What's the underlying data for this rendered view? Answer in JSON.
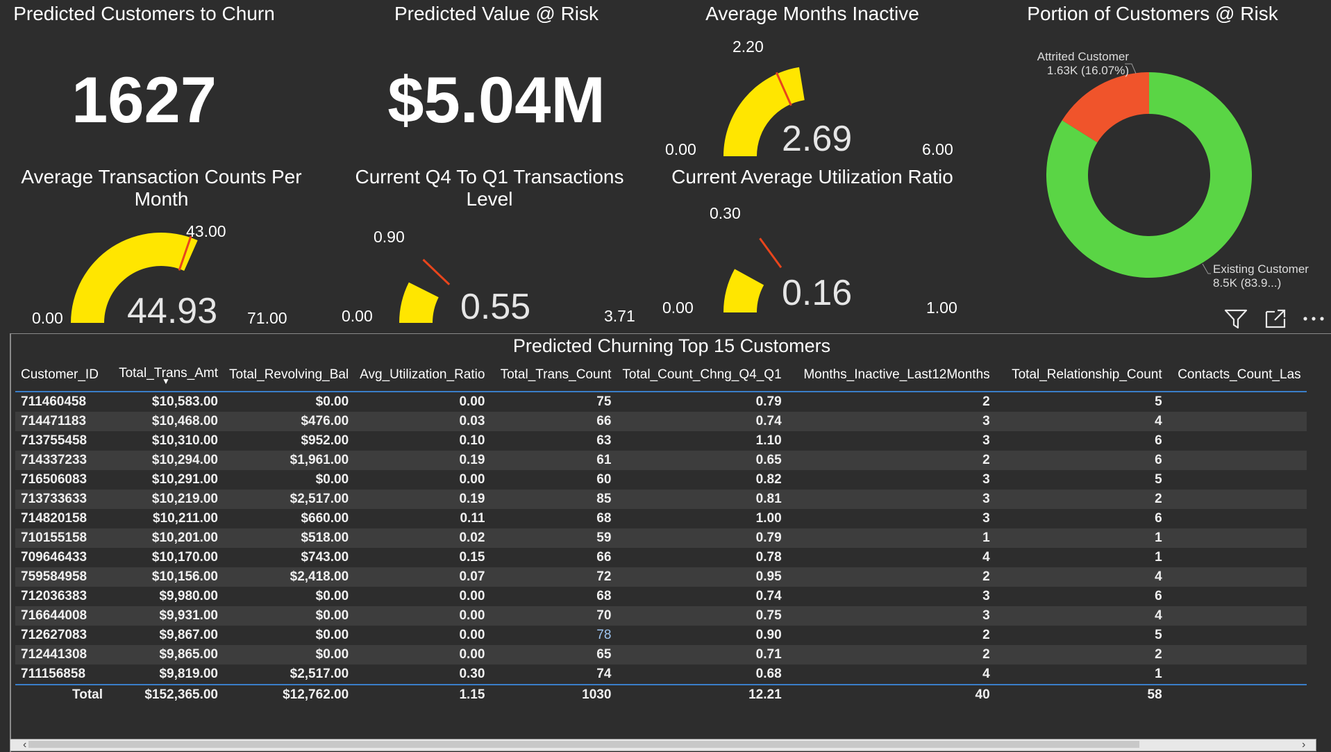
{
  "cards": {
    "churn_title": "Predicted Customers to Churn",
    "churn_value": "1627",
    "value_title": "Predicted Value @ Risk",
    "value_value": "$5.04M"
  },
  "gauges": {
    "months_inactive": {
      "title": "Average Months Inactive",
      "min": "0.00",
      "max": "6.00",
      "target": "2.20",
      "value": "2.69",
      "value_num": 2.69,
      "min_num": 0,
      "max_num": 6,
      "target_num": 2.2
    },
    "trans_counts": {
      "title": "Average Transaction Counts Per Month",
      "min": "0.00",
      "max": "71.00",
      "target": "43.00",
      "value": "44.93",
      "value_num": 44.93,
      "min_num": 0,
      "max_num": 71,
      "target_num": 43
    },
    "q4_q1": {
      "title": "Current Q4 To Q1 Transactions Level",
      "min": "0.00",
      "max": "3.71",
      "target": "0.90",
      "value": "0.55",
      "value_num": 0.55,
      "min_num": 0,
      "max_num": 3.71,
      "target_num": 0.9
    },
    "utilization": {
      "title": "Current Average Utilization Ratio",
      "min": "0.00",
      "max": "1.00",
      "target": "0.30",
      "value": "0.16",
      "value_num": 0.16,
      "min_num": 0,
      "max_num": 1,
      "target_num": 0.3
    }
  },
  "colors": {
    "background": "#2d2d2d",
    "gauge_fill": "#ffe600",
    "target_line": "#e8451c",
    "attrited": "#f0542b",
    "existing": "#5ad545",
    "header_rule": "#3a7ec9"
  },
  "donut": {
    "title": "Portion of Customers @ Risk",
    "attrited_label": "Attrited Customer",
    "attrited_value": "1.63K (16.07%)",
    "existing_label": "Existing Customer",
    "existing_value": "8.5K (83.9...)",
    "attrited_share": 0.1607
  },
  "visual_icons": [
    "filter-icon",
    "focus-mode-icon",
    "more-options-icon"
  ],
  "table": {
    "title": "Predicted Churning Top 15 Customers",
    "columns": [
      "Customer_ID",
      "Total_Trans_Amt",
      "Total_Revolving_Bal",
      "Avg_Utilization_Ratio",
      "Total_Trans_Count",
      "Total_Count_Chng_Q4_Q1",
      "Months_Inactive_Last12Months",
      "Total_Relationship_Count",
      "Contacts_Count_Las"
    ],
    "rows": [
      [
        "711460458",
        "$10,583.00",
        "$0.00",
        "0.00",
        "75",
        "0.79",
        "2",
        "5",
        ""
      ],
      [
        "714471183",
        "$10,468.00",
        "$476.00",
        "0.03",
        "66",
        "0.74",
        "3",
        "4",
        ""
      ],
      [
        "713755458",
        "$10,310.00",
        "$952.00",
        "0.10",
        "63",
        "1.10",
        "3",
        "6",
        ""
      ],
      [
        "714337233",
        "$10,294.00",
        "$1,961.00",
        "0.19",
        "61",
        "0.65",
        "2",
        "6",
        ""
      ],
      [
        "716506083",
        "$10,291.00",
        "$0.00",
        "0.00",
        "60",
        "0.82",
        "3",
        "5",
        ""
      ],
      [
        "713733633",
        "$10,219.00",
        "$2,517.00",
        "0.19",
        "85",
        "0.81",
        "3",
        "2",
        ""
      ],
      [
        "714820158",
        "$10,211.00",
        "$660.00",
        "0.11",
        "68",
        "1.00",
        "3",
        "6",
        ""
      ],
      [
        "710155158",
        "$10,201.00",
        "$518.00",
        "0.02",
        "59",
        "0.79",
        "1",
        "1",
        ""
      ],
      [
        "709646433",
        "$10,170.00",
        "$743.00",
        "0.15",
        "66",
        "0.78",
        "4",
        "1",
        ""
      ],
      [
        "759584958",
        "$10,156.00",
        "$2,418.00",
        "0.07",
        "72",
        "0.95",
        "2",
        "4",
        ""
      ],
      [
        "712036383",
        "$9,980.00",
        "$0.00",
        "0.00",
        "68",
        "0.74",
        "3",
        "6",
        ""
      ],
      [
        "716644008",
        "$9,931.00",
        "$0.00",
        "0.00",
        "70",
        "0.75",
        "3",
        "4",
        ""
      ],
      [
        "712627083",
        "$9,867.00",
        "$0.00",
        "0.00",
        "78",
        "0.90",
        "2",
        "5",
        ""
      ],
      [
        "712441308",
        "$9,865.00",
        "$0.00",
        "0.00",
        "65",
        "0.71",
        "2",
        "2",
        ""
      ],
      [
        "711156858",
        "$9,819.00",
        "$2,517.00",
        "0.30",
        "74",
        "0.68",
        "4",
        "1",
        ""
      ]
    ],
    "totals": [
      "Total",
      "$152,365.00",
      "$12,762.00",
      "1.15",
      "1030",
      "12.21",
      "40",
      "58",
      ""
    ]
  }
}
